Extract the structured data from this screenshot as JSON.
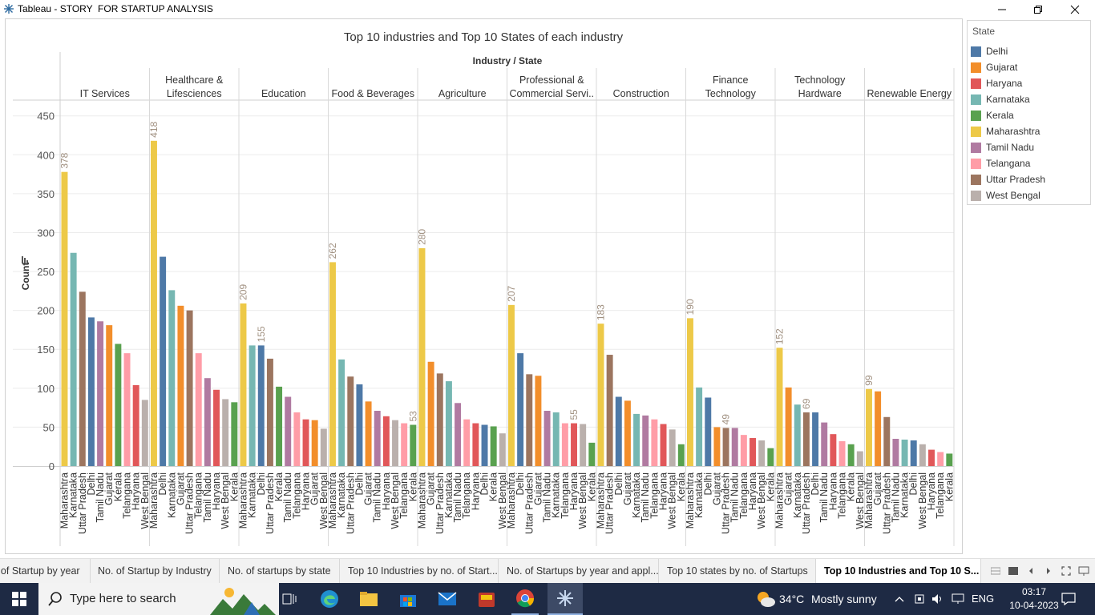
{
  "window": {
    "title": "Tableau - STORY  FOR STARTUP ANALYSIS"
  },
  "chart_data": {
    "type": "bar",
    "title": "Top 10 industries and Top 10 States of each industry",
    "header": "Industry / State",
    "ylabel": "Count",
    "ylim": [
      0,
      470
    ],
    "yticks": [
      0,
      50,
      100,
      150,
      200,
      250,
      300,
      350,
      400,
      450
    ],
    "grid": true,
    "colors": {
      "Delhi": "#4e79a7",
      "Gujarat": "#f28e2b",
      "Haryana": "#e15759",
      "Karnataka": "#76b7b2",
      "Kerala": "#59a14f",
      "Maharashtra": "#edc948",
      "Tamil Nadu": "#b07aa1",
      "Telangana": "#ff9da7",
      "Uttar Pradesh": "#9c755f",
      "West Bengal": "#bab0ac"
    },
    "panes": [
      {
        "industry": [
          "IT Services"
        ],
        "bars": [
          {
            "state": "Maharashtra",
            "value": 378,
            "label": "378"
          },
          {
            "state": "Karnataka",
            "value": 274
          },
          {
            "state": "Uttar Pradesh",
            "value": 224
          },
          {
            "state": "Delhi",
            "value": 191
          },
          {
            "state": "Tamil Nadu",
            "value": 186
          },
          {
            "state": "Gujarat",
            "value": 181
          },
          {
            "state": "Kerala",
            "value": 157
          },
          {
            "state": "Telangana",
            "value": 145
          },
          {
            "state": "Haryana",
            "value": 104
          },
          {
            "state": "West Bengal",
            "value": 85
          }
        ]
      },
      {
        "industry": [
          "Healthcare &",
          "Lifesciences"
        ],
        "bars": [
          {
            "state": "Maharashtra",
            "value": 418,
            "label": "418"
          },
          {
            "state": "Delhi",
            "value": 269
          },
          {
            "state": "Karnataka",
            "value": 226
          },
          {
            "state": "Gujarat",
            "value": 206
          },
          {
            "state": "Uttar Pradesh",
            "value": 200
          },
          {
            "state": "Telangana",
            "value": 145
          },
          {
            "state": "Tamil Nadu",
            "value": 113
          },
          {
            "state": "Haryana",
            "value": 98
          },
          {
            "state": "West Bengal",
            "value": 86
          },
          {
            "state": "Kerala",
            "value": 82
          }
        ]
      },
      {
        "industry": [
          "Education"
        ],
        "bars": [
          {
            "state": "Maharashtra",
            "value": 209,
            "label": "209"
          },
          {
            "state": "Karnataka",
            "value": 155
          },
          {
            "state": "Delhi",
            "value": 155,
            "label": "155"
          },
          {
            "state": "Uttar Pradesh",
            "value": 138
          },
          {
            "state": "Kerala",
            "value": 102
          },
          {
            "state": "Tamil Nadu",
            "value": 89
          },
          {
            "state": "Telangana",
            "value": 69
          },
          {
            "state": "Haryana",
            "value": 60
          },
          {
            "state": "Gujarat",
            "value": 59
          },
          {
            "state": "West Bengal",
            "value": 48
          }
        ]
      },
      {
        "industry": [
          "Food & Beverages"
        ],
        "bars": [
          {
            "state": "Maharashtra",
            "value": 262,
            "label": "262"
          },
          {
            "state": "Karnataka",
            "value": 137
          },
          {
            "state": "Uttar Pradesh",
            "value": 115
          },
          {
            "state": "Delhi",
            "value": 105
          },
          {
            "state": "Gujarat",
            "value": 83
          },
          {
            "state": "Tamil Nadu",
            "value": 71
          },
          {
            "state": "Haryana",
            "value": 64
          },
          {
            "state": "West Bengal",
            "value": 59
          },
          {
            "state": "Telangana",
            "value": 55
          },
          {
            "state": "Kerala",
            "value": 53,
            "label": "53"
          }
        ]
      },
      {
        "industry": [
          "Agriculture"
        ],
        "bars": [
          {
            "state": "Maharashtra",
            "value": 280,
            "label": "280"
          },
          {
            "state": "Gujarat",
            "value": 134
          },
          {
            "state": "Uttar Pradesh",
            "value": 119
          },
          {
            "state": "Karnataka",
            "value": 109
          },
          {
            "state": "Tamil Nadu",
            "value": 81
          },
          {
            "state": "Telangana",
            "value": 60
          },
          {
            "state": "Haryana",
            "value": 55
          },
          {
            "state": "Delhi",
            "value": 53
          },
          {
            "state": "Kerala",
            "value": 51
          },
          {
            "state": "West Bengal",
            "value": 42
          }
        ]
      },
      {
        "industry": [
          "Professional &",
          "Commercial Servi.."
        ],
        "bars": [
          {
            "state": "Maharashtra",
            "value": 207,
            "label": "207"
          },
          {
            "state": "Delhi",
            "value": 145
          },
          {
            "state": "Uttar Pradesh",
            "value": 118
          },
          {
            "state": "Gujarat",
            "value": 116
          },
          {
            "state": "Tamil Nadu",
            "value": 71
          },
          {
            "state": "Karnataka",
            "value": 69
          },
          {
            "state": "Telangana",
            "value": 55
          },
          {
            "state": "Haryana",
            "value": 55,
            "label": "55"
          },
          {
            "state": "West Bengal",
            "value": 54
          },
          {
            "state": "Kerala",
            "value": 30
          }
        ]
      },
      {
        "industry": [
          "Construction"
        ],
        "bars": [
          {
            "state": "Maharashtra",
            "value": 183,
            "label": "183"
          },
          {
            "state": "Uttar Pradesh",
            "value": 143
          },
          {
            "state": "Delhi",
            "value": 89
          },
          {
            "state": "Gujarat",
            "value": 84
          },
          {
            "state": "Karnataka",
            "value": 67
          },
          {
            "state": "Tamil Nadu",
            "value": 65
          },
          {
            "state": "Telangana",
            "value": 60
          },
          {
            "state": "Haryana",
            "value": 54
          },
          {
            "state": "West Bengal",
            "value": 47
          },
          {
            "state": "Kerala",
            "value": 28
          }
        ]
      },
      {
        "industry": [
          "Finance",
          "Technology"
        ],
        "bars": [
          {
            "state": "Maharashtra",
            "value": 190,
            "label": "190"
          },
          {
            "state": "Karnataka",
            "value": 101
          },
          {
            "state": "Delhi",
            "value": 88
          },
          {
            "state": "Gujarat",
            "value": 50
          },
          {
            "state": "Uttar Pradesh",
            "value": 49,
            "label": "49"
          },
          {
            "state": "Tamil Nadu",
            "value": 49
          },
          {
            "state": "Telangana",
            "value": 40
          },
          {
            "state": "Haryana",
            "value": 36
          },
          {
            "state": "West Bengal",
            "value": 33
          },
          {
            "state": "Kerala",
            "value": 23
          }
        ]
      },
      {
        "industry": [
          "Technology",
          "Hardware"
        ],
        "bars": [
          {
            "state": "Maharashtra",
            "value": 152,
            "label": "152"
          },
          {
            "state": "Gujarat",
            "value": 101
          },
          {
            "state": "Karnataka",
            "value": 79
          },
          {
            "state": "Uttar Pradesh",
            "value": 69,
            "label": "69"
          },
          {
            "state": "Delhi",
            "value": 69
          },
          {
            "state": "Tamil Nadu",
            "value": 56
          },
          {
            "state": "Haryana",
            "value": 41
          },
          {
            "state": "Telangana",
            "value": 32
          },
          {
            "state": "Kerala",
            "value": 28
          },
          {
            "state": "West Bengal",
            "value": 19
          }
        ]
      },
      {
        "industry": [
          "Renewable Energy"
        ],
        "bars": [
          {
            "state": "Maharashtra",
            "value": 99,
            "label": "99"
          },
          {
            "state": "Gujarat",
            "value": 96
          },
          {
            "state": "Uttar Pradesh",
            "value": 63
          },
          {
            "state": "Tamil Nadu",
            "value": 35
          },
          {
            "state": "Karnataka",
            "value": 34
          },
          {
            "state": "Delhi",
            "value": 33
          },
          {
            "state": "West Bengal",
            "value": 28
          },
          {
            "state": "Haryana",
            "value": 21
          },
          {
            "state": "Telangana",
            "value": 18
          },
          {
            "state": "Kerala",
            "value": 16
          }
        ]
      }
    ]
  },
  "legend": {
    "title": "State",
    "items": [
      "Delhi",
      "Gujarat",
      "Haryana",
      "Karnataka",
      "Kerala",
      "Maharashtra",
      "Tamil Nadu",
      "Telangana",
      "Uttar Pradesh",
      "West Bengal"
    ]
  },
  "tabs": [
    {
      "label": "No. of Startup by year",
      "active": false
    },
    {
      "label": "No. of Startup by Industry",
      "active": false
    },
    {
      "label": "No. of startups by state",
      "active": false
    },
    {
      "label": "Top 10 Industries by no. of Start...",
      "active": false
    },
    {
      "label": "No. of Startups by year and appl...",
      "active": false
    },
    {
      "label": "Top 10 states by no. of Startups",
      "active": false
    },
    {
      "label": "Top 10 Industries and Top 10 S...",
      "active": true
    }
  ],
  "taskbar": {
    "search_placeholder": "Type here to search",
    "weather_temp": "34°C",
    "weather_text": "Mostly sunny",
    "language": "ENG",
    "time": "03:17",
    "date": "10-04-2023"
  }
}
